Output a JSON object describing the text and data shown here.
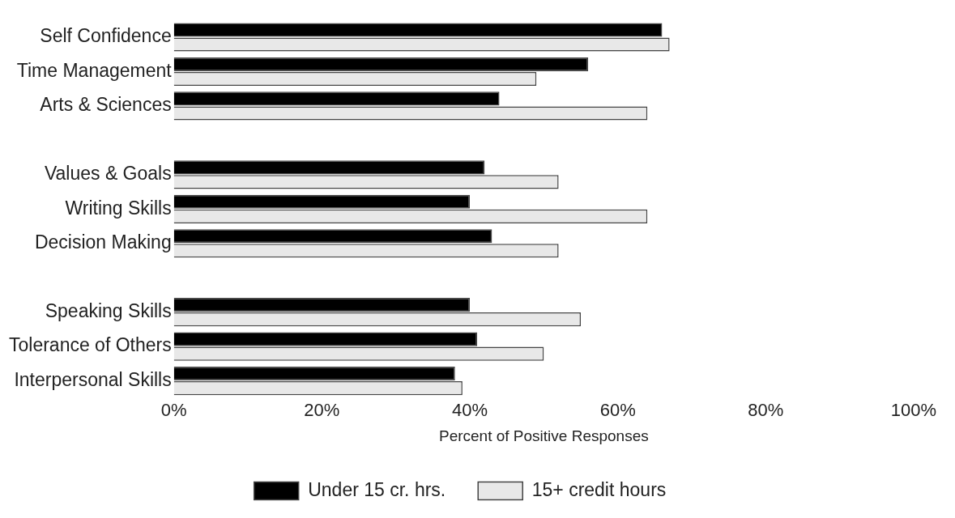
{
  "chart_data": {
    "type": "bar",
    "orientation": "horizontal",
    "xlabel": "Percent of Positive Responses",
    "categories": [
      "Self Confidence",
      "Time Management",
      "Arts & Sciences",
      null,
      "Values & Goals",
      "Writing Skills",
      "Decision Making",
      null,
      "Speaking Skills",
      "Tolerance of Others",
      "Interpersonal Skills"
    ],
    "series": [
      {
        "name": "Under 15 cr. hrs.",
        "color": "#000000",
        "values": [
          66,
          56,
          44,
          null,
          42,
          40,
          43,
          null,
          40,
          41,
          38
        ]
      },
      {
        "name": "15+ credit hours",
        "color": "#e8e8e8",
        "values": [
          67,
          49,
          64,
          null,
          52,
          64,
          52,
          null,
          55,
          50,
          39
        ]
      }
    ],
    "xlim": [
      0,
      100
    ],
    "xticks": [
      {
        "value": 0,
        "label": "0%"
      },
      {
        "value": 20,
        "label": "20%"
      },
      {
        "value": 40,
        "label": "40%"
      },
      {
        "value": 60,
        "label": "60%"
      },
      {
        "value": 80,
        "label": "80%"
      },
      {
        "value": 100,
        "label": "100%"
      }
    ],
    "grid": false,
    "legend": "bottom"
  }
}
